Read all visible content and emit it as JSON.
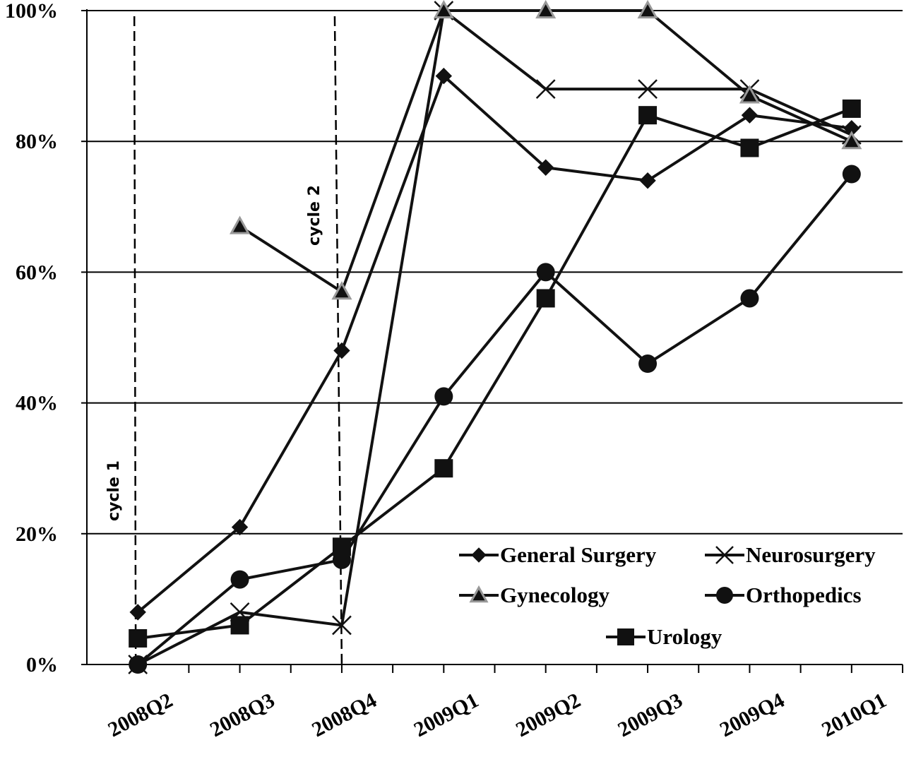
{
  "chart_data": {
    "type": "line",
    "categories": [
      "2008Q2",
      "2008Q3",
      "2008Q4",
      "2009Q1",
      "2009Q2",
      "2009Q3",
      "2009Q4",
      "2010Q1"
    ],
    "y_ticks": [
      "0%",
      "20%",
      "40%",
      "60%",
      "80%",
      "100%"
    ],
    "ylim": [
      0,
      100
    ],
    "grid": "horizontal",
    "legend_position": "bottom-right",
    "series": [
      {
        "name": "General Surgery",
        "marker": "diamond",
        "values": [
          8,
          21,
          48,
          90,
          76,
          74,
          84,
          82
        ]
      },
      {
        "name": "Neurosurgery",
        "marker": "x",
        "values": [
          0,
          8,
          6,
          100,
          88,
          88,
          88,
          81
        ]
      },
      {
        "name": "Gynecology",
        "marker": "triangle",
        "values": [
          null,
          67,
          57,
          100,
          100,
          100,
          87,
          80
        ]
      },
      {
        "name": "Orthopedics",
        "marker": "circle",
        "values": [
          0,
          13,
          16,
          41,
          60,
          46,
          56,
          75
        ]
      },
      {
        "name": "Urology",
        "marker": "square",
        "values": [
          4,
          6,
          18,
          30,
          56,
          84,
          79,
          85
        ]
      }
    ],
    "annotations": [
      {
        "text": "cycle 1",
        "category": "2008Q2"
      },
      {
        "text": "cycle 2",
        "category": "2008Q4"
      }
    ]
  }
}
